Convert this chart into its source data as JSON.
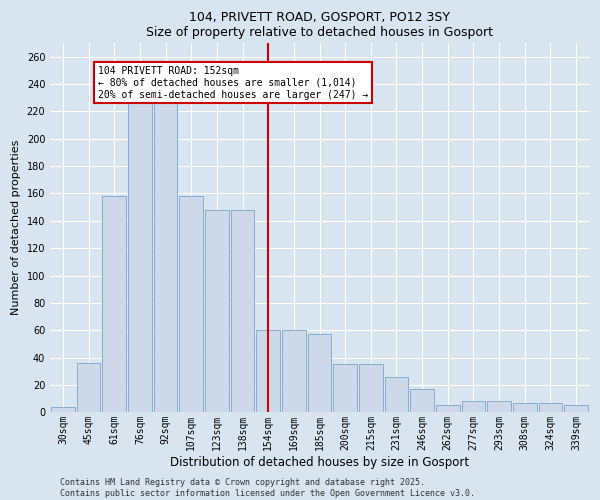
{
  "title1": "104, PRIVETT ROAD, GOSPORT, PO12 3SY",
  "title2": "Size of property relative to detached houses in Gosport",
  "xlabel": "Distribution of detached houses by size in Gosport",
  "ylabel": "Number of detached properties",
  "categories": [
    "30sqm",
    "45sqm",
    "61sqm",
    "76sqm",
    "92sqm",
    "107sqm",
    "123sqm",
    "138sqm",
    "154sqm",
    "169sqm",
    "185sqm",
    "200sqm",
    "215sqm",
    "231sqm",
    "246sqm",
    "262sqm",
    "277sqm",
    "293sqm",
    "308sqm",
    "324sqm",
    "339sqm"
  ],
  "values": [
    4,
    36,
    158,
    228,
    230,
    158,
    148,
    148,
    60,
    60,
    57,
    35,
    35,
    26,
    17,
    5,
    8,
    8,
    7,
    7,
    5
  ],
  "bar_color": "#cdd9e8",
  "bar_edge_color": "#7aa5c8",
  "highlight_color": "#cc0000",
  "highlight_bar_index": 8,
  "annotation_line1": "104 PRIVETT ROAD: 152sqm",
  "annotation_line2": "← 80% of detached houses are smaller (1,014)",
  "annotation_line3": "20% of semi-detached houses are larger (247) →",
  "annotation_box_color": "#ffffff",
  "annotation_box_edge": "#cc0000",
  "ylim": [
    0,
    270
  ],
  "yticks": [
    0,
    20,
    40,
    60,
    80,
    100,
    120,
    140,
    160,
    180,
    200,
    220,
    240,
    260
  ],
  "footer1": "Contains HM Land Registry data © Crown copyright and database right 2025.",
  "footer2": "Contains public sector information licensed under the Open Government Licence v3.0.",
  "bg_color": "#d8e4f0",
  "plot_bg_color": "#d8e4f0",
  "grid_color": "#ffffff",
  "title_fontsize": 9,
  "axis_label_fontsize": 8,
  "tick_fontsize": 7,
  "footer_fontsize": 6
}
